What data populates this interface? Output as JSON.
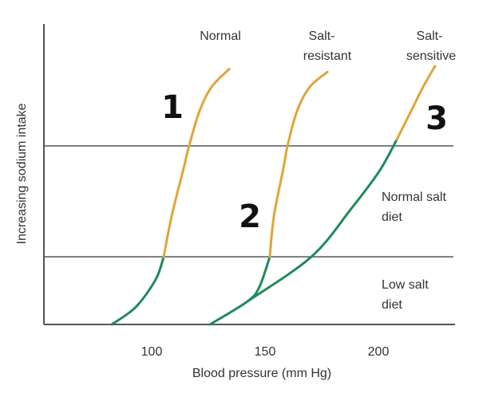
{
  "chart_data": {
    "type": "line",
    "xlabel": "Blood pressure (mm Hg)",
    "ylabel": "Increasing sodium intake",
    "xlim": [
      67,
      237
    ],
    "ylim": [
      0,
      10
    ],
    "x_ticks": [
      "100",
      "150",
      "200"
    ],
    "x_tick_values": [
      100,
      150,
      200
    ],
    "reference_lines": [
      2.25,
      5.94
    ],
    "region_labels": [
      {
        "text_line1": "Normal salt",
        "text_line2": "diet"
      },
      {
        "text_line1": "Low salt",
        "text_line2": "diet"
      }
    ],
    "curve_labels": [
      {
        "line1": "Normal",
        "line2": "",
        "number": "1"
      },
      {
        "line1": "Salt-",
        "line2": "resistant",
        "number": "2"
      },
      {
        "line1": "Salt-",
        "line2": "sensitive",
        "number": "3"
      }
    ],
    "colors": {
      "low_salt": "#1e8a5c",
      "normal_salt": "#e0a43c",
      "axis": "#555555"
    },
    "series": [
      {
        "name": "Normal",
        "segments": [
          {
            "phase": "low_salt",
            "points": [
              [
                82.4,
                0
              ],
              [
                93,
                0.58
              ],
              [
                101.8,
                1.5
              ],
              [
                105.3,
                2.25
              ]
            ]
          },
          {
            "phase": "normal_salt",
            "points": [
              [
                105.3,
                2.25
              ],
              [
                108.8,
                3.6
              ],
              [
                114.1,
                5.2
              ],
              [
                116.5,
                5.94
              ],
              [
                121.1,
                7.1
              ],
              [
                126.4,
                7.9
              ],
              [
                134.2,
                8.5
              ]
            ]
          }
        ]
      },
      {
        "name": "Salt-resistant",
        "segments": [
          {
            "phase": "low_salt",
            "points": [
              [
                125.7,
                0
              ],
              [
                142.3,
                0.77
              ],
              [
                147.5,
                1.25
              ],
              [
                152.1,
                2.25
              ]
            ]
          },
          {
            "phase": "normal_salt",
            "points": [
              [
                152.1,
                2.25
              ],
              [
                153.9,
                3.6
              ],
              [
                158.1,
                5.2
              ],
              [
                159.9,
                5.94
              ],
              [
                164.1,
                7.1
              ],
              [
                169.7,
                7.9
              ],
              [
                177.5,
                8.4
              ]
            ]
          }
        ]
      },
      {
        "name": "Salt-sensitive",
        "segments": [
          {
            "phase": "low_salt",
            "points": [
              [
                142.3,
                0.77
              ],
              [
                170.4,
                2.25
              ],
              [
                188,
                3.85
              ],
              [
                200.4,
                5.1
              ],
              [
                208.1,
                6.15
              ]
            ]
          },
          {
            "phase": "normal_salt",
            "points": [
              [
                208.1,
                6.15
              ],
              [
                214.4,
                7.1
              ],
              [
                219.7,
                7.9
              ],
              [
                225,
                8.6
              ]
            ]
          }
        ]
      }
    ]
  }
}
